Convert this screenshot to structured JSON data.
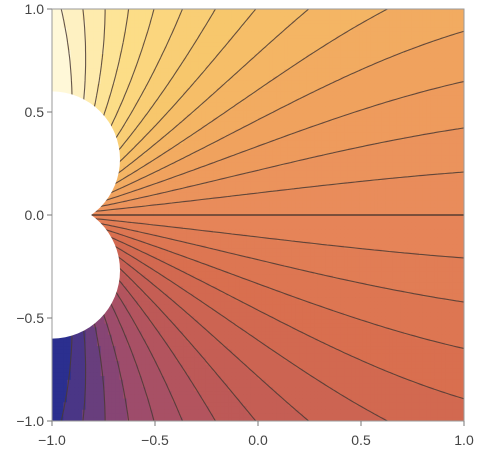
{
  "chart_data": {
    "type": "contour",
    "title": "",
    "xlabel": "",
    "ylabel": "",
    "xlim": [
      -1.0,
      1.0
    ],
    "ylim": [
      -1.0,
      1.0
    ],
    "x_ticks": [
      -1.0,
      -0.5,
      0.0,
      0.5,
      1.0
    ],
    "y_ticks": [
      -1.0,
      -0.5,
      0.0,
      0.5,
      1.0
    ],
    "x_tick_labels": [
      "-1.0",
      "-0.5",
      "0.0",
      "0.5",
      "1.0"
    ],
    "y_tick_labels": [
      "-1.0",
      "-0.5",
      "0.0",
      "0.5",
      "1.0"
    ],
    "excluded_regions": [
      {
        "shape": "disk",
        "center": [
          -1.0,
          0.27
        ],
        "radius": 0.33
      },
      {
        "shape": "disk",
        "center": [
          -1.0,
          -0.27
        ],
        "radius": 0.33
      }
    ],
    "contour_lines": 30,
    "colormap": [
      "#2b2f8f",
      "#9a4a6e",
      "#c05a55",
      "#d86e4f",
      "#e8885a",
      "#f0a35e",
      "#f7c56a",
      "#fde08a",
      "#fff8d8"
    ],
    "grid": false,
    "legend": "none"
  }
}
